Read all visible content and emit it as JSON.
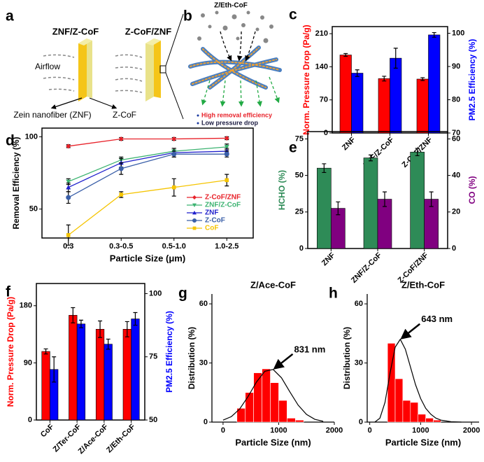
{
  "diagram_a": {
    "panel": "a",
    "labels": [
      "ZNF/Z-CoF",
      "Z-CoF/ZNF"
    ],
    "airflow": "Airflow",
    "zein": "Zein nanofiber (ZNF)",
    "zcof": "Z-CoF"
  },
  "diagram_b": {
    "panel": "b",
    "title": "Z/Eth-CoF",
    "notes": [
      "High removal efficiency",
      "Low pressure drop"
    ]
  },
  "chart_data": [
    {
      "panel": "c",
      "type": "bar",
      "categories": [
        "ZNF",
        "ZNF/Z-CoF",
        "Z-CoF/ZNF"
      ],
      "xtick_rotation": 45,
      "y_label": "Norm. Pressure Drop (Pa/g)",
      "y2_label": "PM2.5 Efficiency (%)",
      "ylim": [
        0,
        225
      ],
      "yticks": [
        0,
        70,
        140,
        210
      ],
      "y2lim": [
        70,
        102
      ],
      "y2ticks": [
        70,
        80,
        90,
        100
      ],
      "series": [
        {
          "color": "#ff0000",
          "values": [
            165,
            115,
            114
          ],
          "errors": [
            3,
            5,
            3
          ]
        },
        {
          "color": "#0000ff",
          "axis": "y2",
          "values": [
            88,
            92.5,
            99.5
          ],
          "errors": [
            1,
            3,
            0.7
          ]
        }
      ]
    },
    {
      "panel": "d",
      "type": "line",
      "categories": [
        "0.3",
        "0.3-0.5",
        "0.5-1.0",
        "1.0-2.5"
      ],
      "x_label": "Particle Size (μm)",
      "y_label": "Removal Efficiency (%)",
      "ylim": [
        30,
        106
      ],
      "yticks": [
        50,
        100
      ],
      "legend": "lower right",
      "series": [
        {
          "name": "Z-CoF/ZNF",
          "color": "#e8222a",
          "marker": "diamond",
          "values": [
            93.5,
            98.5,
            98.5,
            99
          ],
          "errors": [
            1,
            1,
            1,
            1
          ]
        },
        {
          "name": "ZNF/Z-CoF",
          "color": "#3cb371",
          "marker": "triangle-down",
          "values": [
            69,
            84,
            90,
            93
          ],
          "errors": [
            2,
            2,
            2,
            2
          ]
        },
        {
          "name": "ZNF",
          "color": "#1f1fcc",
          "marker": "triangle-up",
          "values": [
            65,
            82,
            89,
            90
          ],
          "errors": [
            3,
            3,
            3,
            2
          ]
        },
        {
          "name": "Z-CoF",
          "color": "#3a5fa8",
          "marker": "circle",
          "values": [
            58,
            78,
            88,
            88
          ],
          "errors": [
            4,
            4,
            2,
            2
          ]
        },
        {
          "name": "CoF",
          "color": "#f5c400",
          "marker": "square",
          "values": [
            32,
            60,
            65,
            70
          ],
          "errors": [
            7,
            2,
            6,
            4
          ]
        }
      ]
    },
    {
      "panel": "e",
      "type": "bar",
      "categories": [
        "ZNF",
        "ZNF/Z-CoF",
        "Z-CoF/ZNF"
      ],
      "xtick_rotation": 45,
      "y_label": "HCHO (%)",
      "y2_label": "CO (%)",
      "ylim": [
        0,
        80
      ],
      "yticks": [
        0,
        25,
        50,
        75
      ],
      "y2lim": [
        0,
        64
      ],
      "y2ticks": [
        0,
        20,
        40,
        60
      ],
      "series": [
        {
          "color": "#2e8b57",
          "values": [
            55,
            62,
            66
          ],
          "errors": [
            3,
            2,
            2.5
          ]
        },
        {
          "color": "#800080",
          "axis": "y2",
          "values": [
            22,
            27,
            27
          ],
          "errors": [
            3.5,
            4,
            4
          ]
        }
      ]
    },
    {
      "panel": "f",
      "type": "bar",
      "categories": [
        "CoF",
        "Z/Ter-CoF",
        "Z/Ace-CoF",
        "Z/Eth-CoF"
      ],
      "xtick_rotation": 45,
      "y_label": "Norm. Pressure Drop (Pa/g)",
      "y2_label": "PM2.5 Efficiency (%)",
      "ylim": [
        0,
        215
      ],
      "yticks": [
        0,
        90,
        180
      ],
      "y2lim": [
        50,
        104
      ],
      "y2ticks": [
        50,
        75,
        100
      ],
      "series": [
        {
          "color": "#ff0000",
          "values": [
            108,
            165,
            143,
            143
          ],
          "errors": [
            4,
            12,
            13,
            12
          ]
        },
        {
          "color": "#0000ff",
          "axis": "y2",
          "values": [
            70,
            88,
            80,
            90
          ],
          "errors": [
            5,
            1.5,
            2,
            2.5
          ]
        }
      ]
    },
    {
      "panel": "g",
      "type": "histogram",
      "title": "Z/Ace-CoF",
      "x_label": "Particle Size (nm)",
      "y_label": "Distribution (%)",
      "xlim": [
        -200,
        2000
      ],
      "xticks": [
        0,
        1000,
        2000
      ],
      "ylim": [
        0,
        65
      ],
      "yticks": [
        0,
        30,
        60
      ],
      "color": "#ff0000",
      "bins": [
        250,
        400,
        550,
        700,
        850,
        1000,
        1150,
        1300,
        1450
      ],
      "values": [
        7,
        15,
        25,
        27,
        20,
        11,
        2,
        1
      ],
      "fit": {
        "x": [
          0,
          150,
          300,
          450,
          600,
          750,
          900,
          1050,
          1200,
          1350,
          1500,
          1650,
          1800
        ],
        "values": [
          1,
          2.8,
          6.7,
          13,
          20.3,
          25.8,
          26.7,
          22.5,
          15.4,
          8.6,
          3.9,
          1.4,
          0.4
        ]
      },
      "annotation": "831 nm"
    },
    {
      "panel": "h",
      "type": "histogram",
      "title": "Z/Eth-CoF",
      "x_label": "Particle Size (nm)",
      "y_label": "Distribution (%)",
      "xlim": [
        -50,
        2150
      ],
      "xticks": [
        0,
        1000,
        2000
      ],
      "ylim": [
        0,
        65
      ],
      "yticks": [
        0,
        30,
        60
      ],
      "color": "#ff0000",
      "bins": [
        350,
        500,
        650,
        800,
        950,
        1100,
        1250,
        1400
      ],
      "values": [
        40,
        22,
        11,
        10,
        4,
        2,
        1
      ],
      "fit": {
        "x": [
          100,
          200,
          300,
          400,
          500,
          600,
          700,
          800,
          900,
          1000,
          1100,
          1200,
          1300,
          1400,
          1600,
          1800
        ],
        "values": [
          0,
          2,
          10,
          25,
          38,
          42,
          37,
          28,
          19,
          12,
          7,
          4,
          2,
          1,
          0.2,
          0
        ]
      },
      "annotation": "643 nm"
    }
  ]
}
